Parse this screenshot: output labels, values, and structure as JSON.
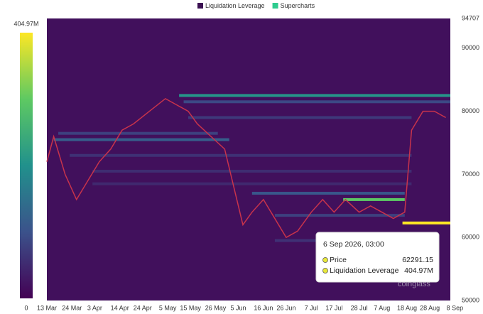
{
  "chart_data": {
    "type": "heatmap",
    "series": [
      {
        "name": "Liquidation Leverage",
        "color": "#3b1152"
      },
      {
        "name": "Supercharts",
        "color": "#2ecc8f",
        "line_color": "#c8334b",
        "x": [
          0,
          3,
          8,
          13,
          18,
          23,
          28,
          33,
          38,
          45,
          52,
          57,
          62,
          66,
          72,
          78,
          82,
          86,
          90,
          95,
          100,
          105,
          110,
          116,
          121,
          126,
          131,
          137,
          142,
          147,
          152,
          157,
          160,
          165,
          170,
          175
        ],
        "values": [
          72000,
          76000,
          70000,
          66000,
          69000,
          72000,
          74000,
          77000,
          78000,
          80000,
          82000,
          81000,
          80000,
          78000,
          76000,
          74000,
          68000,
          62000,
          64000,
          66000,
          63000,
          60000,
          61000,
          64000,
          66000,
          64000,
          66000,
          64000,
          65000,
          64000,
          63000,
          64000,
          77000,
          80000,
          80000,
          79000
        ]
      }
    ],
    "bands": [
      {
        "price": 82500,
        "from": 58,
        "to": 177,
        "value": 210
      },
      {
        "price": 81500,
        "from": 60,
        "to": 177,
        "value": 90
      },
      {
        "price": 79000,
        "from": 62,
        "to": 160,
        "value": 70
      },
      {
        "price": 75500,
        "from": 3,
        "to": 80,
        "value": 120
      },
      {
        "price": 76500,
        "from": 5,
        "to": 75,
        "value": 80
      },
      {
        "price": 73000,
        "from": 10,
        "to": 160,
        "value": 60
      },
      {
        "price": 70500,
        "from": 20,
        "to": 160,
        "value": 55
      },
      {
        "price": 68500,
        "from": 20,
        "to": 160,
        "value": 50
      },
      {
        "price": 66000,
        "from": 130,
        "to": 157,
        "value": 300
      },
      {
        "price": 67000,
        "from": 90,
        "to": 157,
        "value": 110
      },
      {
        "price": 62291.15,
        "from": 156,
        "to": 177,
        "value": 404.97
      },
      {
        "price": 63500,
        "from": 100,
        "to": 157,
        "value": 80
      },
      {
        "price": 59500,
        "from": 100,
        "to": 157,
        "value": 60
      }
    ],
    "xlim": [
      0,
      177
    ],
    "xticks": [
      {
        "value": 0,
        "label": "13 Mar"
      },
      {
        "value": 11,
        "label": "24 Mar"
      },
      {
        "value": 21,
        "label": "3 Apr"
      },
      {
        "value": 32,
        "label": "14 Apr"
      },
      {
        "value": 42,
        "label": "24 Apr"
      },
      {
        "value": 53,
        "label": "5 May"
      },
      {
        "value": 63,
        "label": "15 May"
      },
      {
        "value": 74,
        "label": "26 May"
      },
      {
        "value": 84,
        "label": "5 Jun"
      },
      {
        "value": 95,
        "label": "16 Jun"
      },
      {
        "value": 105,
        "label": "26 Jun"
      },
      {
        "value": 116,
        "label": "7 Jul"
      },
      {
        "value": 126,
        "label": "17 Jul"
      },
      {
        "value": 137,
        "label": "28 Jul"
      },
      {
        "value": 147,
        "label": "7 Aug"
      },
      {
        "value": 158,
        "label": "18 Aug"
      },
      {
        "value": 168,
        "label": "28 Aug"
      },
      {
        "value": 179,
        "label": "8 Sep"
      }
    ],
    "ylim": [
      50000,
      94707
    ],
    "yticks": [
      50000,
      60000,
      70000,
      80000,
      90000,
      94707
    ],
    "clim": [
      0,
      404.97
    ],
    "cticks": [
      0,
      {
        "value": 404.97,
        "label": "404.97M"
      }
    ],
    "tooltip": {
      "title": "6 Sep 2026, 03:00",
      "rows": [
        {
          "name": "Price",
          "value": 62291.15,
          "color": "#e8e83a"
        },
        {
          "name": "Liquidation Leverage",
          "value": 404.97,
          "value_label": "404.97M",
          "color": "#e8e83a"
        }
      ]
    },
    "watermark": "coinglass"
  }
}
